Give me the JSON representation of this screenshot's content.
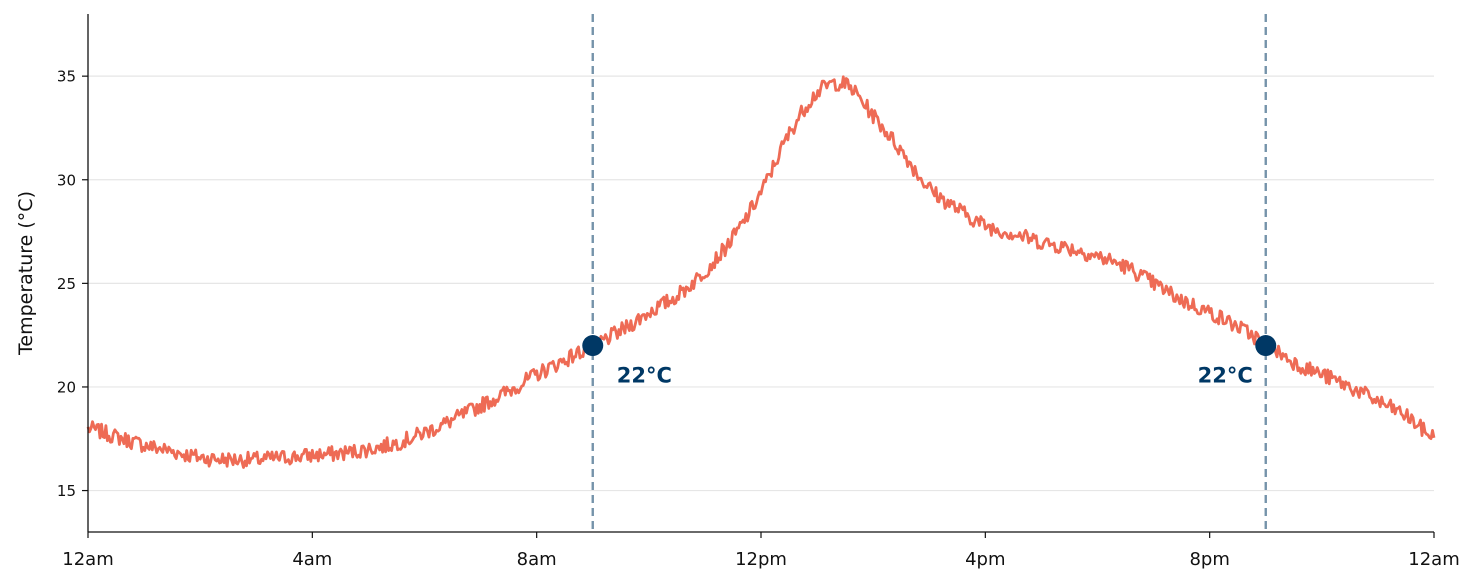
{
  "chart_data": {
    "type": "line",
    "title": "",
    "xlabel": "",
    "ylabel": "Temperature (°C)",
    "xlim": [
      0,
      24
    ],
    "ylim": [
      13,
      38
    ],
    "x_ticks": [
      0,
      4,
      8,
      12,
      16,
      20,
      24
    ],
    "x_tick_labels": [
      "12am",
      "4am",
      "8am",
      "12pm",
      "4pm",
      "8pm",
      "12am"
    ],
    "y_ticks": [
      15,
      20,
      25,
      30,
      35
    ],
    "y_tick_labels": [
      "15",
      "20",
      "25",
      "30",
      "35"
    ],
    "grid": "horizontal",
    "line_color": "#ee6b55",
    "marker_color": "#003865",
    "vline_color": "#7593aa",
    "series": [
      {
        "x": [
          0,
          0.5,
          1,
          1.5,
          2,
          2.5,
          3,
          3.5,
          4,
          4.5,
          5,
          5.5,
          6,
          6.5,
          7,
          7.5,
          8,
          8.5,
          9,
          9.5,
          10,
          10.5,
          11,
          11.5,
          12,
          12.5,
          13,
          13.5,
          14,
          14.5,
          15,
          15.5,
          16,
          16.5,
          17,
          17.5,
          18,
          18.5,
          19,
          19.5,
          20,
          20.5,
          21,
          21.5,
          22,
          22.5,
          23,
          23.5,
          24
        ],
        "values": [
          18.0,
          17.6,
          17.2,
          16.9,
          16.6,
          16.5,
          16.5,
          16.6,
          16.7,
          16.8,
          17.0,
          17.3,
          17.8,
          18.4,
          19.1,
          19.8,
          20.6,
          21.3,
          22.0,
          22.7,
          23.6,
          24.4,
          25.6,
          27.2,
          29.4,
          32.2,
          34.2,
          34.6,
          33.1,
          31.4,
          29.6,
          28.6,
          27.8,
          27.4,
          27.0,
          26.7,
          26.3,
          25.8,
          25.0,
          24.2,
          23.6,
          22.9,
          22.1,
          21.2,
          20.6,
          20.0,
          19.3,
          18.6,
          17.6
        ]
      }
    ],
    "vlines": [
      9,
      21
    ],
    "markers": [
      {
        "x": 9,
        "y": 22,
        "label": "22°C"
      },
      {
        "x": 21,
        "y": 22,
        "label": "22°C"
      }
    ]
  }
}
